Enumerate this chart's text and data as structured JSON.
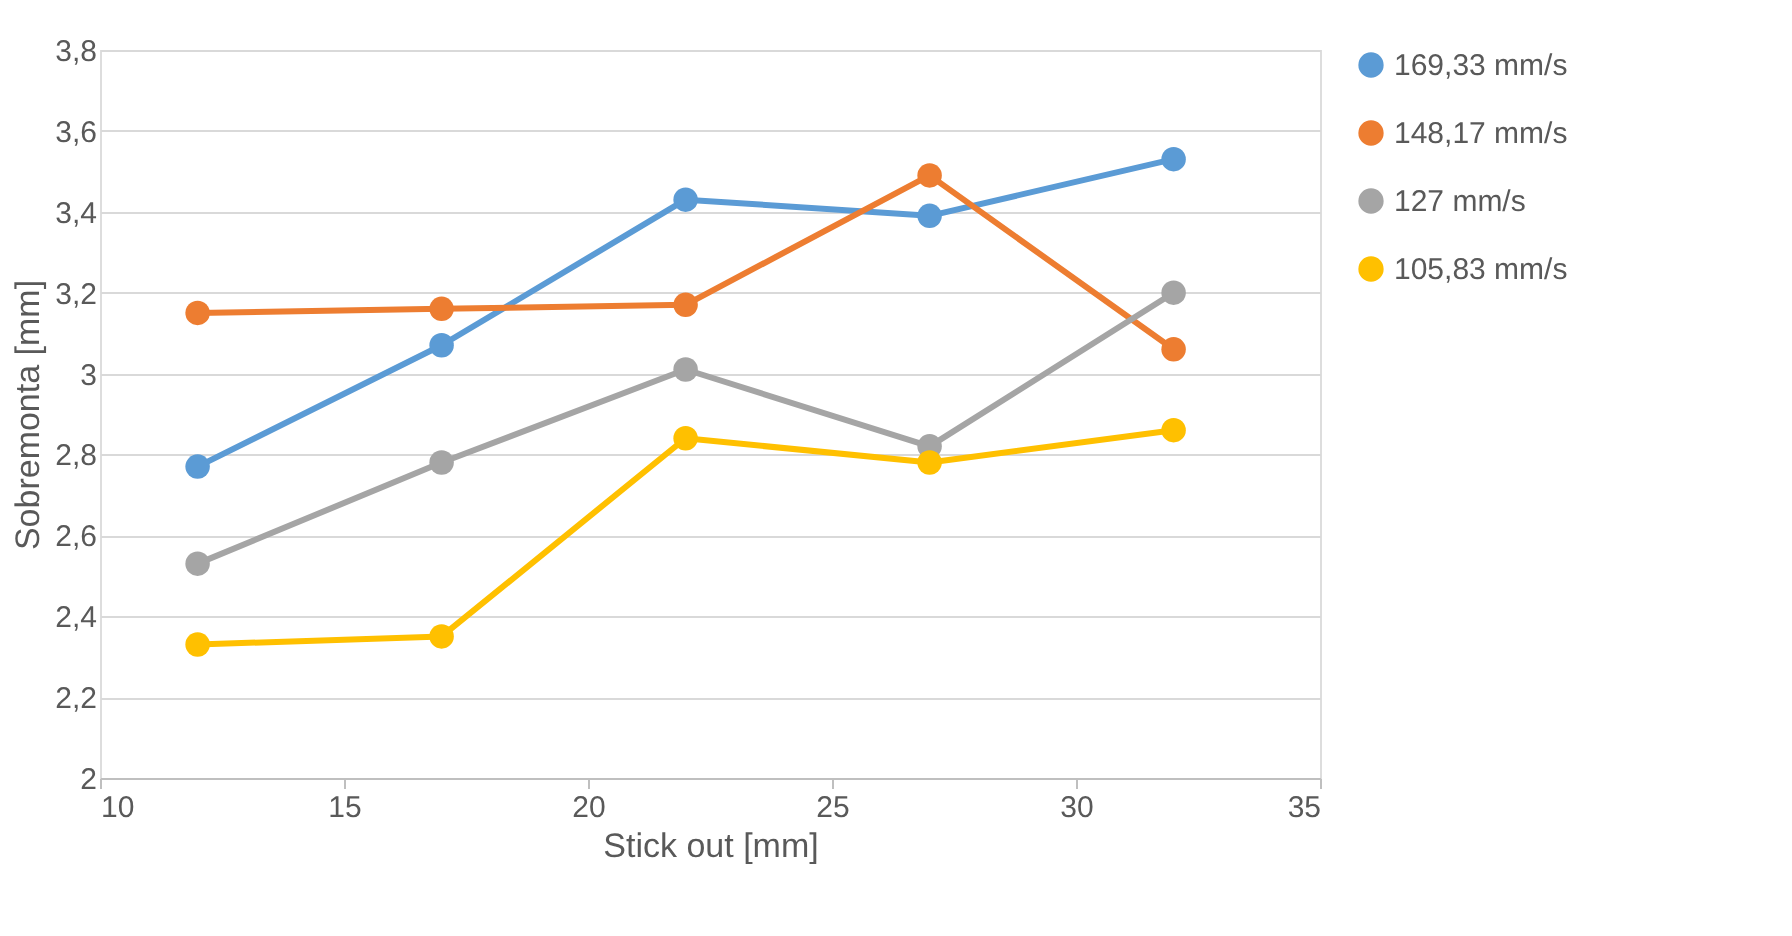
{
  "chart_data": {
    "type": "line",
    "xlabel": "Stick out [mm]",
    "ylabel": "Sobremonta [mm]",
    "x": [
      12,
      17,
      22,
      27,
      32
    ],
    "series": [
      {
        "name": "169,33 mm/s",
        "color": "#5b9bd5",
        "values": [
          2.77,
          3.07,
          3.43,
          3.39,
          3.53
        ]
      },
      {
        "name": "148,17 mm/s",
        "color": "#ed7d31",
        "values": [
          3.15,
          3.16,
          3.17,
          3.49,
          3.06
        ]
      },
      {
        "name": "127 mm/s",
        "color": "#a5a5a5",
        "values": [
          2.53,
          2.78,
          3.01,
          2.82,
          3.2
        ]
      },
      {
        "name": "105,83 mm/s",
        "color": "#ffc000",
        "values": [
          2.33,
          2.35,
          2.84,
          2.78,
          2.86
        ]
      }
    ],
    "xlim": [
      10,
      35
    ],
    "xticks": [
      10,
      15,
      20,
      25,
      30,
      35
    ],
    "ylim": [
      2,
      3.8
    ],
    "yticks": [
      2,
      {
        "value": 2.2,
        "label": "2,2"
      },
      {
        "value": 2.4,
        "label": "2,4"
      },
      {
        "value": 2.6,
        "label": "2,6"
      },
      {
        "value": 2.8,
        "label": "2,8"
      },
      3,
      {
        "value": 3.2,
        "label": "3,2"
      },
      {
        "value": 3.4,
        "label": "3,4"
      },
      {
        "value": 3.6,
        "label": "3,6"
      },
      {
        "value": 3.8,
        "label": "3,8"
      }
    ],
    "grid": "y",
    "legend": "right",
    "marker": "circle",
    "line_style": "solid"
  }
}
